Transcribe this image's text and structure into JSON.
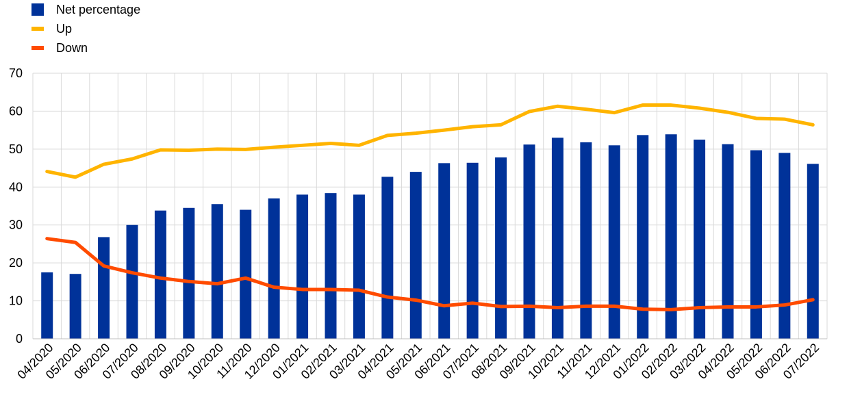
{
  "chart_data": {
    "type": "bar",
    "categories": [
      "04/2020",
      "05/2020",
      "06/2020",
      "07/2020",
      "08/2020",
      "09/2020",
      "10/2020",
      "11/2020",
      "12/2020",
      "01/2021",
      "02/2021",
      "03/2021",
      "04/2021",
      "05/2021",
      "06/2021",
      "07/2021",
      "08/2021",
      "09/2021",
      "10/2021",
      "11/2021",
      "12/2021",
      "01/2022",
      "02/2022",
      "03/2022",
      "04/2022",
      "05/2022",
      "06/2022",
      "07/2022"
    ],
    "series": [
      {
        "name": "Net percentage",
        "type": "bar",
        "color": "#003299",
        "values": [
          17.5,
          17.1,
          26.8,
          30.0,
          33.8,
          34.5,
          35.5,
          34.0,
          37.0,
          38.0,
          38.4,
          38.0,
          42.7,
          44.0,
          46.3,
          46.4,
          47.8,
          51.2,
          53.0,
          51.8,
          51.0,
          53.7,
          53.9,
          52.5,
          51.3,
          49.7,
          49.0,
          46.1
        ]
      },
      {
        "name": "Up",
        "type": "line",
        "color": "#FFB400",
        "values": [
          44.1,
          42.6,
          46.0,
          47.4,
          49.8,
          49.7,
          50.0,
          49.9,
          50.5,
          51.0,
          51.5,
          51.0,
          53.6,
          54.2,
          55.0,
          55.9,
          56.4,
          59.9,
          61.3,
          60.5,
          59.6,
          61.6,
          61.6,
          60.8,
          59.7,
          58.1,
          57.9,
          56.4
        ]
      },
      {
        "name": "Down",
        "type": "line",
        "color": "#FF4B00",
        "values": [
          26.4,
          25.4,
          19.2,
          17.4,
          16.0,
          15.1,
          14.5,
          16.0,
          13.6,
          13.0,
          13.0,
          12.8,
          11.0,
          10.2,
          8.7,
          9.4,
          8.5,
          8.6,
          8.2,
          8.6,
          8.6,
          7.8,
          7.7,
          8.2,
          8.4,
          8.4,
          8.9,
          10.3
        ]
      }
    ],
    "ylim": [
      0,
      70
    ],
    "yticks": [
      0,
      10,
      20,
      30,
      40,
      50,
      60,
      70
    ],
    "grid": true,
    "legend_position": "top-left"
  }
}
